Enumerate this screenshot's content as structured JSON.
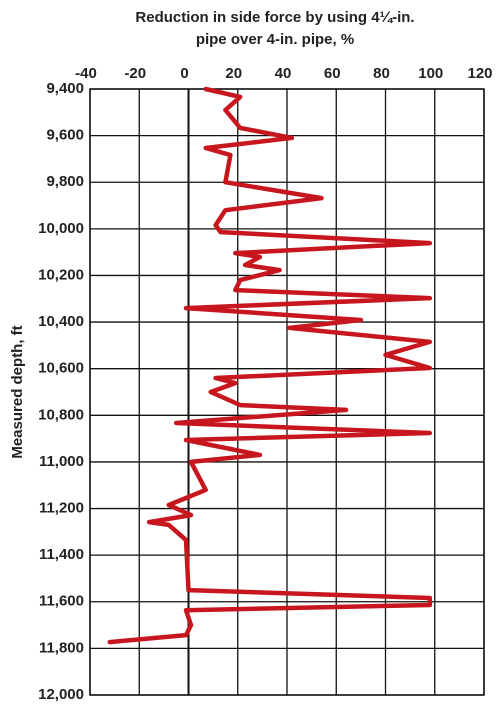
{
  "chart_data": {
    "type": "line",
    "title": [
      "Reduction in side force by using 4¼-in.",
      "pipe over 4-in. pipe, %"
    ],
    "y_label": "Measured depth, ft",
    "color": "#c8161e",
    "grid": true,
    "y_inverted": true,
    "xlim": [
      -40,
      120
    ],
    "xticks": [
      -40,
      -20,
      0,
      20,
      40,
      60,
      80,
      100,
      120
    ],
    "ylim": [
      9400,
      12000
    ],
    "yticks": [
      {
        "value": 9400,
        "label": "9,400"
      },
      {
        "value": 9600,
        "label": "9,600"
      },
      {
        "value": 9800,
        "label": "9,800"
      },
      {
        "value": 10000,
        "label": "10,000"
      },
      {
        "value": 10200,
        "label": "10,200"
      },
      {
        "value": 10400,
        "label": "10,400"
      },
      {
        "value": 10600,
        "label": "10,600"
      },
      {
        "value": 10800,
        "label": "10,800"
      },
      {
        "value": 11000,
        "label": "11,000"
      },
      {
        "value": 11200,
        "label": "11,200"
      },
      {
        "value": 11400,
        "label": "11,400"
      },
      {
        "value": 11600,
        "label": "11,600"
      },
      {
        "value": 11800,
        "label": "11,800"
      },
      {
        "value": 12000,
        "label": "12,000"
      }
    ],
    "x": [
      7,
      21,
      15,
      21,
      42,
      7,
      17,
      15,
      54,
      15,
      11,
      13,
      98,
      19,
      29,
      23,
      37,
      21,
      19,
      98,
      -1,
      70,
      41,
      98,
      80,
      98,
      11,
      19,
      9,
      21,
      64,
      -5,
      98,
      -1,
      29,
      1,
      7,
      -8,
      1,
      -16,
      -8,
      -1,
      0,
      98,
      98,
      -1,
      1,
      -1,
      -32
    ],
    "y": [
      9400,
      9434,
      9490,
      9567,
      9610,
      9653,
      9683,
      9800,
      9868,
      9920,
      9984,
      10014,
      10061,
      10104,
      10121,
      10155,
      10177,
      10220,
      10263,
      10297,
      10340,
      10391,
      10425,
      10485,
      10541,
      10597,
      10640,
      10662,
      10700,
      10756,
      10777,
      10833,
      10876,
      10906,
      10970,
      11000,
      11120,
      11185,
      11228,
      11258,
      11270,
      11335,
      11550,
      11584,
      11614,
      11636,
      11700,
      11743,
      11773
    ]
  }
}
